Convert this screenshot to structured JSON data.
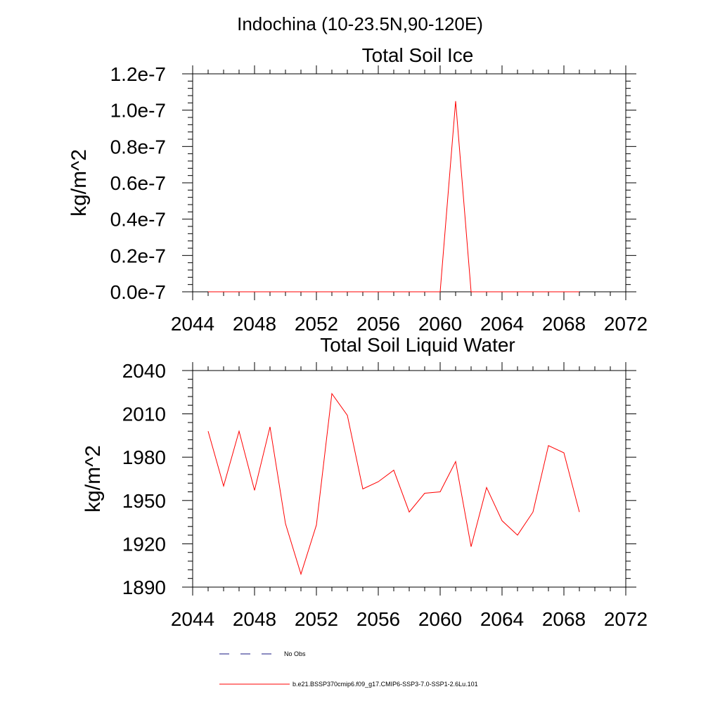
{
  "figure": {
    "suptitle": "Indochina (10-23.5N,90-120E)"
  },
  "colors": {
    "model": "#ff0000",
    "obs": "#1a1a80",
    "axis": "#000000"
  },
  "legend": {
    "items": [
      {
        "label": "No Obs",
        "style": "dashed",
        "color": "#1a1a80"
      },
      {
        "label": "b.e21.BSSP370cmip6.f09_g17.CMIP6-SSP3-7.0-SSP1-2.6Lu.101",
        "style": "solid",
        "color": "#ff0000"
      }
    ]
  },
  "chart_data": [
    {
      "type": "line",
      "title": "Total Soil Ice",
      "xlabel": "",
      "ylabel": "kg/m^2",
      "xlim": [
        2044,
        2072
      ],
      "ylim": [
        0,
        1.2e-07
      ],
      "xticks": [
        2044,
        2048,
        2052,
        2056,
        2060,
        2064,
        2068,
        2072
      ],
      "xtick_labels": [
        "2044",
        "2048",
        "2052",
        "2056",
        "2060",
        "2064",
        "2068",
        "2072"
      ],
      "yticks": [
        0,
        2e-08,
        4e-08,
        6e-08,
        8e-08,
        1e-07,
        1.2e-07
      ],
      "ytick_labels": [
        "0.0e-7",
        "0.2e-7",
        "0.4e-7",
        "0.6e-7",
        "0.8e-7",
        "1.0e-7",
        "1.2e-7"
      ],
      "grid": false,
      "series": [
        {
          "x": [
            2045,
            2046,
            2047,
            2048,
            2049,
            2050,
            2051,
            2052,
            2053,
            2054,
            2055,
            2056,
            2057,
            2058,
            2059,
            2060,
            2061,
            2062,
            2063,
            2064,
            2065,
            2066,
            2067,
            2068,
            2069
          ],
          "values": [
            0,
            0,
            0,
            0,
            0,
            0,
            0,
            0,
            0,
            0,
            0,
            0,
            0,
            0,
            0,
            0,
            1.05e-07,
            0,
            0,
            0,
            0,
            0,
            0,
            0,
            0
          ]
        }
      ]
    },
    {
      "type": "line",
      "title": "Total Soil Liquid Water",
      "xlabel": "",
      "ylabel": "kg/m^2",
      "xlim": [
        2044,
        2072
      ],
      "ylim": [
        1890,
        2040
      ],
      "xticks": [
        2044,
        2048,
        2052,
        2056,
        2060,
        2064,
        2068,
        2072
      ],
      "xtick_labels": [
        "2044",
        "2048",
        "2052",
        "2056",
        "2060",
        "2064",
        "2068",
        "2072"
      ],
      "yticks": [
        1890,
        1920,
        1950,
        1980,
        2010,
        2040
      ],
      "ytick_labels": [
        "1890",
        "1920",
        "1950",
        "1980",
        "2010",
        "2040"
      ],
      "grid": false,
      "series": [
        {
          "x": [
            2045,
            2046,
            2047,
            2048,
            2049,
            2050,
            2051,
            2052,
            2053,
            2054,
            2055,
            2056,
            2057,
            2058,
            2059,
            2060,
            2061,
            2062,
            2063,
            2064,
            2065,
            2066,
            2067,
            2068,
            2069
          ],
          "values": [
            1998,
            1960,
            1998,
            1957,
            2001,
            1934,
            1899,
            1933,
            2024,
            2009,
            1958,
            1963,
            1971,
            1942,
            1955,
            1956,
            1977,
            1918,
            1959,
            1936,
            1926,
            1942,
            1988,
            1983,
            1942
          ]
        }
      ]
    }
  ]
}
